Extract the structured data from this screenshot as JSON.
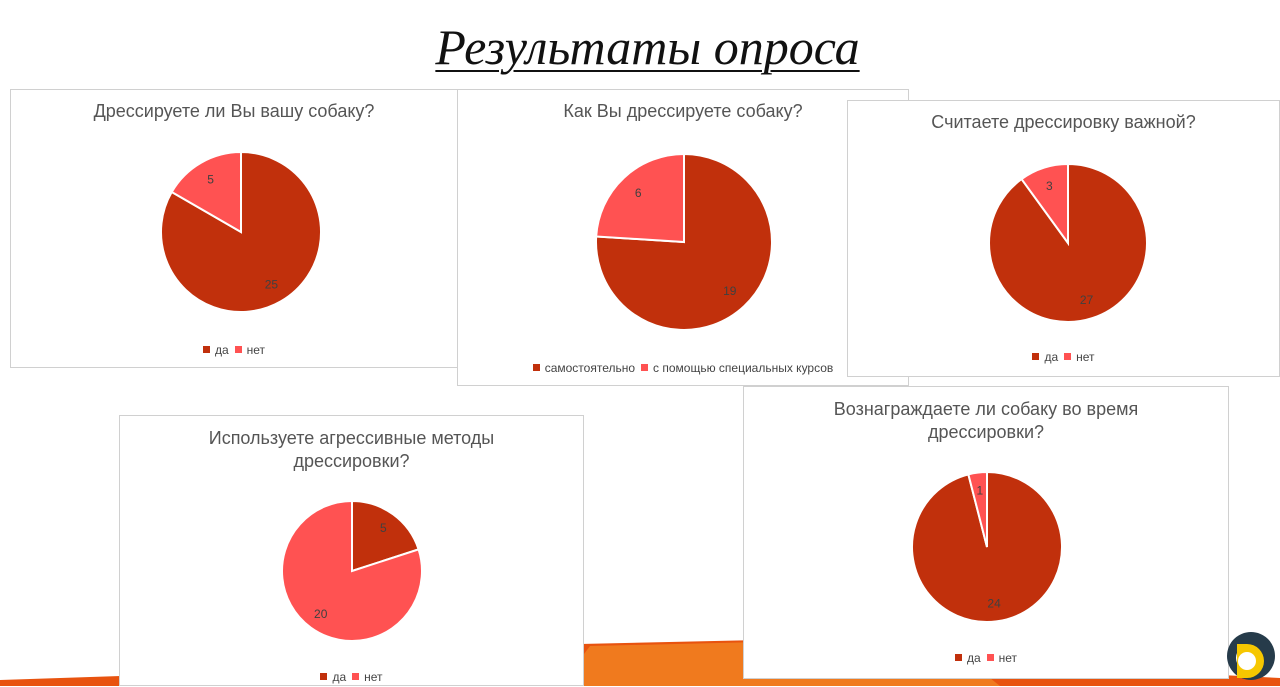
{
  "slide": {
    "title": "Результаты опроса",
    "colors": {
      "primary": "#c1300c",
      "secondary": "#ff5252",
      "band": "#e8530f"
    }
  },
  "chart_data": [
    {
      "type": "pie",
      "title": "Дрессируете ли Вы вашу собаку?",
      "categories": [
        "да",
        "нет"
      ],
      "values": [
        25,
        5
      ],
      "legend": "bottom"
    },
    {
      "type": "pie",
      "title": "Как Вы дрессируете собаку?",
      "categories": [
        "самостоятельно",
        "с помощью специальных курсов"
      ],
      "values": [
        19,
        6
      ],
      "legend": "bottom"
    },
    {
      "type": "pie",
      "title": "Считаете дрессировку важной?",
      "categories": [
        "да",
        "нет"
      ],
      "values": [
        27,
        3
      ],
      "legend": "bottom"
    },
    {
      "type": "pie",
      "title": "Используете агрессивные методы дрессировки?",
      "categories": [
        "да",
        "нет"
      ],
      "values": [
        5,
        20
      ],
      "legend": "bottom"
    },
    {
      "type": "pie",
      "title": "Вознаграждаете ли собаку во время дрессировки?",
      "categories": [
        "да",
        "нет"
      ],
      "values": [
        24,
        1
      ],
      "legend": "bottom"
    }
  ]
}
